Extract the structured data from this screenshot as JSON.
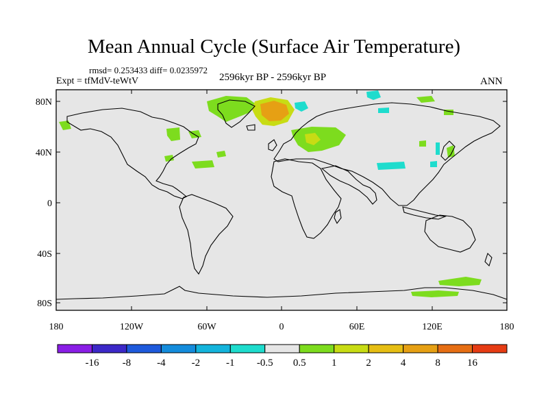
{
  "title": "Mean Annual Cycle (Surface Air Temperature)",
  "stats": "rmsd= 0.253433 diff= 0.0235972",
  "experiment": "Expt = tfMdV-teWtV",
  "period": "2596kyr BP - 2596kyr BP",
  "season": "ANN",
  "map": {
    "lat_ticks": [
      "80N",
      "40N",
      "0",
      "40S",
      "80S"
    ],
    "lon_ticks": [
      "180",
      "120W",
      "60W",
      "0",
      "60E",
      "120E",
      "180"
    ],
    "background_color": "#e6e6e6"
  },
  "colorbar": {
    "colors": [
      "#8a1ee6",
      "#3c28c8",
      "#1e5adc",
      "#148cdc",
      "#14b4dc",
      "#1edccd",
      "#e6e6e6",
      "#7ddc1e",
      "#c8dc14",
      "#e6be14",
      "#e6a014",
      "#e66e14",
      "#e63c14"
    ],
    "labels": [
      "-16",
      "-8",
      "-4",
      "-2",
      "-1",
      "-0.5",
      "0.5",
      "1",
      "2",
      "4",
      "8",
      "16"
    ]
  }
}
